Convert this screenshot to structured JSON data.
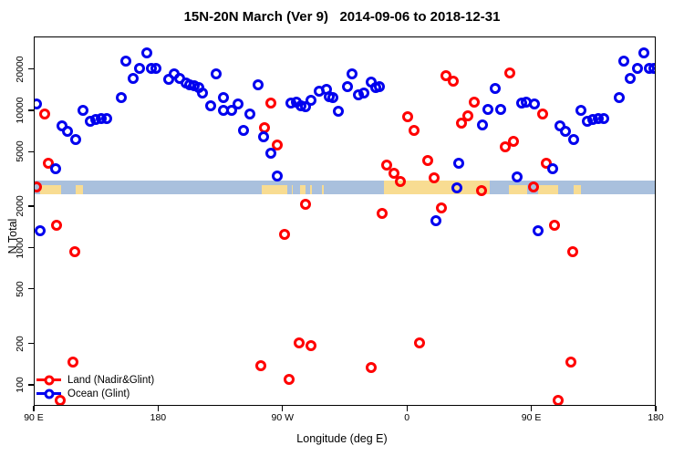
{
  "title": "15N-20N March (Ver 9)   2014-09-06 to 2018-12-31",
  "axes": {
    "x_label": "Longitude (deg E)",
    "y_label": "N Total",
    "x_ticks": [
      {
        "label": "90 E",
        "axis_deg": 0
      },
      {
        "label": "180",
        "axis_deg": 90
      },
      {
        "label": "90 W",
        "axis_deg": 180
      },
      {
        "label": "0",
        "axis_deg": 270
      },
      {
        "label": "90 E",
        "axis_deg": 360
      },
      {
        "label": "180",
        "axis_deg": 450
      }
    ],
    "y_ticks": [
      100,
      200,
      500,
      1000,
      2000,
      5000,
      10000,
      20000
    ]
  },
  "legend": [
    {
      "label": "Land (Nadir&Glint)",
      "color": "#ff0000"
    },
    {
      "label": "Ocean (Glint)",
      "color": "#0000ee"
    }
  ],
  "colors": {
    "land_points": "#ff0000",
    "ocean_points": "#0000ee",
    "strip_ocean": "#a9c0dd",
    "strip_land": "#f8dc92",
    "axis": "#000000",
    "background": "#ffffff"
  },
  "chart_data": {
    "type": "scatter",
    "title": "15N-20N March (Ver 9)   2014-09-06 to 2018-12-31",
    "xlabel": "Longitude (deg E)",
    "ylabel": "N Total",
    "x_axis": {
      "start": "90E",
      "span_deg": 450,
      "note": "longitude axis runs 90E-180-90W-0-90E-180; data with lon 90E-180 is drawn at both ends"
    },
    "y_axis": {
      "scale": "log10",
      "visible_range": [
        70,
        30000
      ]
    },
    "map_strip": {
      "n_range": [
        2480,
        3130
      ],
      "description": "15N-20N latitude land/ocean strip",
      "land_segments_lon": [
        {
          "lon": [
            94,
            109
          ],
          "full": false
        },
        {
          "lon": [
            120,
            125
          ],
          "full": false
        },
        {
          "lon": [
            73,
            86
          ],
          "full": false
        },
        {
          "lon": [
            -17,
            59
          ],
          "full": true
        },
        {
          "lon": [
            -106,
            -87
          ],
          "full": false
        },
        {
          "lon": [
            -84,
            -83
          ],
          "full": false
        },
        {
          "lon": [
            -78,
            -74
          ],
          "full": false
        },
        {
          "lon": [
            -70.5,
            -69.5
          ],
          "full": false
        },
        {
          "lon": [
            -62,
            -61
          ],
          "full": false
        }
      ]
    },
    "series": [
      {
        "name": "Land (Nadir&Glint)",
        "color": "#ff0000",
        "points_lon_n": [
          [
            97.5,
            9500
          ],
          [
            100,
            4150
          ],
          [
            91,
            2820
          ],
          [
            106,
            1480
          ],
          [
            119,
            950
          ],
          [
            118,
            148
          ],
          [
            108.5,
            78
          ],
          [
            -99.2,
            11400
          ],
          [
            -103.6,
            7650
          ],
          [
            -94.3,
            5700
          ],
          [
            0,
            9100
          ],
          [
            4.5,
            7250
          ],
          [
            -15,
            4050
          ],
          [
            -10,
            3550
          ],
          [
            -5.7,
            3100
          ],
          [
            14.1,
            4350
          ],
          [
            19.2,
            3280
          ],
          [
            27.6,
            18300
          ],
          [
            32.9,
            16600
          ],
          [
            47.8,
            11600
          ],
          [
            73.6,
            19000
          ],
          [
            43.6,
            9300
          ],
          [
            38.8,
            8250
          ],
          [
            70.7,
            5500
          ],
          [
            76.6,
            6080
          ],
          [
            53.1,
            2650
          ],
          [
            -74,
            2100
          ],
          [
            -18.4,
            1810
          ],
          [
            24,
            1990
          ],
          [
            -89.4,
            1270
          ],
          [
            -78.8,
            205
          ],
          [
            -69.9,
            195
          ],
          [
            -106.6,
            141
          ],
          [
            -86.2,
            111
          ],
          [
            -26.5,
            136
          ],
          [
            8.7,
            206
          ]
        ]
      },
      {
        "name": "Ocean (Glint)",
        "color": "#0000ee",
        "points_lon_n": [
          [
            91.5,
            11300
          ],
          [
            82.3,
            11400
          ],
          [
            85.4,
            11600
          ],
          [
            110,
            7800
          ],
          [
            114,
            7100
          ],
          [
            120,
            6250
          ],
          [
            125,
            10100
          ],
          [
            130,
            8400
          ],
          [
            134,
            8700
          ],
          [
            138,
            8800
          ],
          [
            142,
            8900
          ],
          [
            153,
            12500
          ],
          [
            156,
            23100
          ],
          [
            161,
            17300
          ],
          [
            166,
            20600
          ],
          [
            171,
            26700
          ],
          [
            174.5,
            20400
          ],
          [
            178,
            20600
          ],
          [
            -173,
            17100
          ],
          [
            -168.8,
            18600
          ],
          [
            -164.9,
            17300
          ],
          [
            -160.4,
            16000
          ],
          [
            -157.6,
            15500
          ],
          [
            -154.3,
            15300
          ],
          [
            -151,
            14900
          ],
          [
            -148.6,
            13600
          ],
          [
            -142.6,
            10900
          ],
          [
            -138.4,
            18600
          ],
          [
            -133.2,
            12600
          ],
          [
            -133.6,
            10200
          ],
          [
            -127.4,
            10200
          ],
          [
            -122.9,
            11300
          ],
          [
            -118.9,
            7300
          ],
          [
            -114.1,
            9550
          ],
          [
            -108.6,
            15700
          ],
          [
            -104.2,
            6500
          ],
          [
            -99.2,
            4930
          ],
          [
            -94.7,
            3370
          ],
          [
            -84.9,
            11400
          ],
          [
            -80.9,
            11600
          ],
          [
            -77.6,
            11000
          ],
          [
            -73.9,
            10800
          ],
          [
            -69.9,
            12100
          ],
          [
            -64.4,
            14000
          ],
          [
            -58.9,
            14400
          ],
          [
            -57.2,
            12800
          ],
          [
            -54.1,
            12600
          ],
          [
            -50.1,
            10000
          ],
          [
            -43.9,
            15200
          ],
          [
            -40.2,
            18600
          ],
          [
            -35.8,
            13200
          ],
          [
            -32.1,
            13500
          ],
          [
            -26.4,
            16400
          ],
          [
            -23.3,
            14800
          ],
          [
            -20.4,
            15000
          ],
          [
            63.4,
            14700
          ],
          [
            58.1,
            10300
          ],
          [
            67.4,
            10300
          ],
          [
            53.8,
            8000
          ],
          [
            37,
            4150
          ],
          [
            20.2,
            1600
          ],
          [
            35.4,
            2750
          ],
          [
            78.8,
            3320
          ],
          [
            105,
            3790
          ],
          [
            94,
            1350
          ]
        ]
      }
    ]
  }
}
